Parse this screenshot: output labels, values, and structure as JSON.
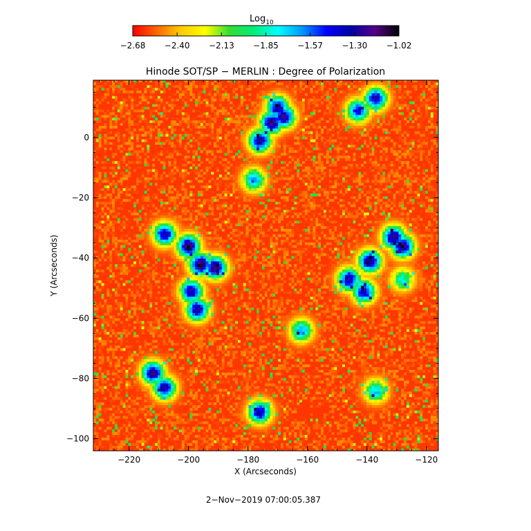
{
  "chart_data": {
    "type": "heatmap",
    "title": "Hinode SOT/SP − MERLIN : Degree of Polarization",
    "xlabel": "X (Arcseconds)",
    "ylabel": "Y (Arcseconds)",
    "timestamp": "2−Nov−2019 07:00:05.387",
    "xlim": [
      -232,
      -116
    ],
    "ylim": [
      -104,
      19
    ],
    "x_ticks": [
      -220,
      -200,
      -180,
      -160,
      -140,
      -120
    ],
    "x_tick_labels": [
      "−220",
      "−200",
      "−180",
      "−160",
      "−140",
      "−120"
    ],
    "y_ticks": [
      0,
      -20,
      -40,
      -60,
      -80,
      -100
    ],
    "y_tick_labels": [
      "0",
      "−20",
      "−40",
      "−60",
      "−80",
      "−100"
    ],
    "colorbar": {
      "label": "Log",
      "label_subscript": "10",
      "range": [
        -2.68,
        -1.02
      ],
      "tick_labels": [
        "−2.68",
        "−2.40",
        "−2.13",
        "−1.85",
        "−1.57",
        "−1.30",
        "−1.02"
      ],
      "colors": [
        "#ff0000",
        "#ff6600",
        "#ffcc00",
        "#ffff00",
        "#33dd33",
        "#00ee77",
        "#00ffff",
        "#0099ff",
        "#0000ff",
        "#0000aa",
        "#550088",
        "#000000"
      ]
    },
    "field_values": {
      "background": -2.6,
      "active_patches": [
        {
          "x": -172,
          "y": 5,
          "peak": -1.2
        },
        {
          "x": -176,
          "y": -1,
          "peak": -1.25
        },
        {
          "x": -168,
          "y": 7,
          "peak": -1.22
        },
        {
          "x": -137,
          "y": 13,
          "peak": -1.3
        },
        {
          "x": -143,
          "y": 9,
          "peak": -1.4
        },
        {
          "x": -178,
          "y": -14,
          "peak": -1.6
        },
        {
          "x": -170,
          "y": 10,
          "peak": -1.25
        },
        {
          "x": -208,
          "y": -32,
          "peak": -1.3
        },
        {
          "x": -200,
          "y": -36,
          "peak": -1.15
        },
        {
          "x": -196,
          "y": -42,
          "peak": -1.1
        },
        {
          "x": -191,
          "y": -43,
          "peak": -1.15
        },
        {
          "x": -199,
          "y": -51,
          "peak": -1.25
        },
        {
          "x": -197,
          "y": -57,
          "peak": -1.25
        },
        {
          "x": -131,
          "y": -33,
          "peak": -1.15
        },
        {
          "x": -128,
          "y": -36,
          "peak": -1.2
        },
        {
          "x": -139,
          "y": -41,
          "peak": -1.2
        },
        {
          "x": -146,
          "y": -47,
          "peak": -1.25
        },
        {
          "x": -141,
          "y": -51,
          "peak": -1.3
        },
        {
          "x": -212,
          "y": -78,
          "peak": -1.2
        },
        {
          "x": -208,
          "y": -83,
          "peak": -1.3
        },
        {
          "x": -176,
          "y": -91,
          "peak": -1.3
        },
        {
          "x": -162,
          "y": -64,
          "peak": -1.6
        },
        {
          "x": -137,
          "y": -84,
          "peak": -1.7
        },
        {
          "x": -128,
          "y": -47,
          "peak": -1.8
        }
      ]
    }
  }
}
